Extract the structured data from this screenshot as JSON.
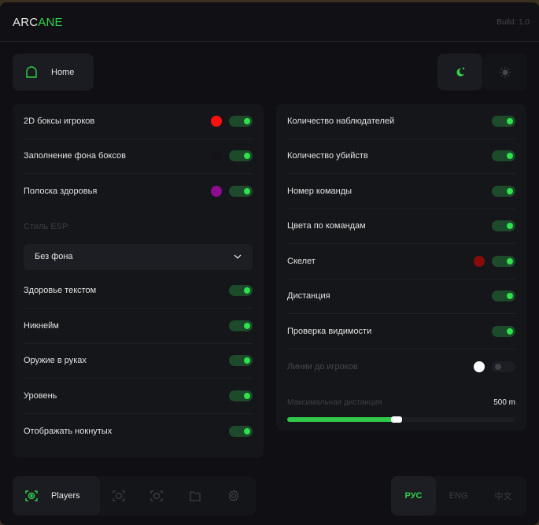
{
  "header": {
    "logo_a": "ARC",
    "logo_b": "ANE",
    "build": "Build: 1.0"
  },
  "nav": {
    "home": "Home"
  },
  "theme": {
    "active": "dark",
    "dark_icon": "moon-icon",
    "light_icon": "sun-icon"
  },
  "colors": {
    "accent": "#2fd24a"
  },
  "left": {
    "rows1": [
      {
        "label": "2D боксы игроков",
        "color": "#ff1010",
        "on": true
      },
      {
        "label": "Заполнение фона боксов",
        "color": "#141418",
        "on": true
      },
      {
        "label": "Полоска здоровья",
        "color": "#8e0c8e",
        "on": true
      }
    ],
    "esp_label": "Стиль ESP",
    "esp_value": "Без фона",
    "rows2": [
      {
        "label": "Здоровье текстом",
        "on": true
      },
      {
        "label": "Никнейм",
        "on": true
      },
      {
        "label": "Оружие в руках",
        "on": true
      },
      {
        "label": "Уровень",
        "on": true
      },
      {
        "label": "Отображать нокнутых",
        "on": true
      }
    ]
  },
  "right": {
    "rows": [
      {
        "label": "Количество наблюдателей",
        "on": true
      },
      {
        "label": "Количество убийств",
        "on": true
      },
      {
        "label": "Номер команды",
        "on": true
      },
      {
        "label": "Цвета по командам",
        "on": true
      },
      {
        "label": "Скелет",
        "color": "#8a0a0a",
        "on": true
      },
      {
        "label": "Дистанция",
        "on": true
      },
      {
        "label": "Проверка видимости",
        "on": true
      },
      {
        "label": "Линии до игроков",
        "color": "#ffffff",
        "on": false,
        "disabled": true
      }
    ],
    "slider": {
      "label": "Максимальная дистанция",
      "value": "500 m",
      "fraction": 0.48
    }
  },
  "bottom": {
    "active_tab": "Players",
    "langs": [
      "РУС",
      "ENG",
      "中文"
    ],
    "active_lang": "РУС"
  }
}
